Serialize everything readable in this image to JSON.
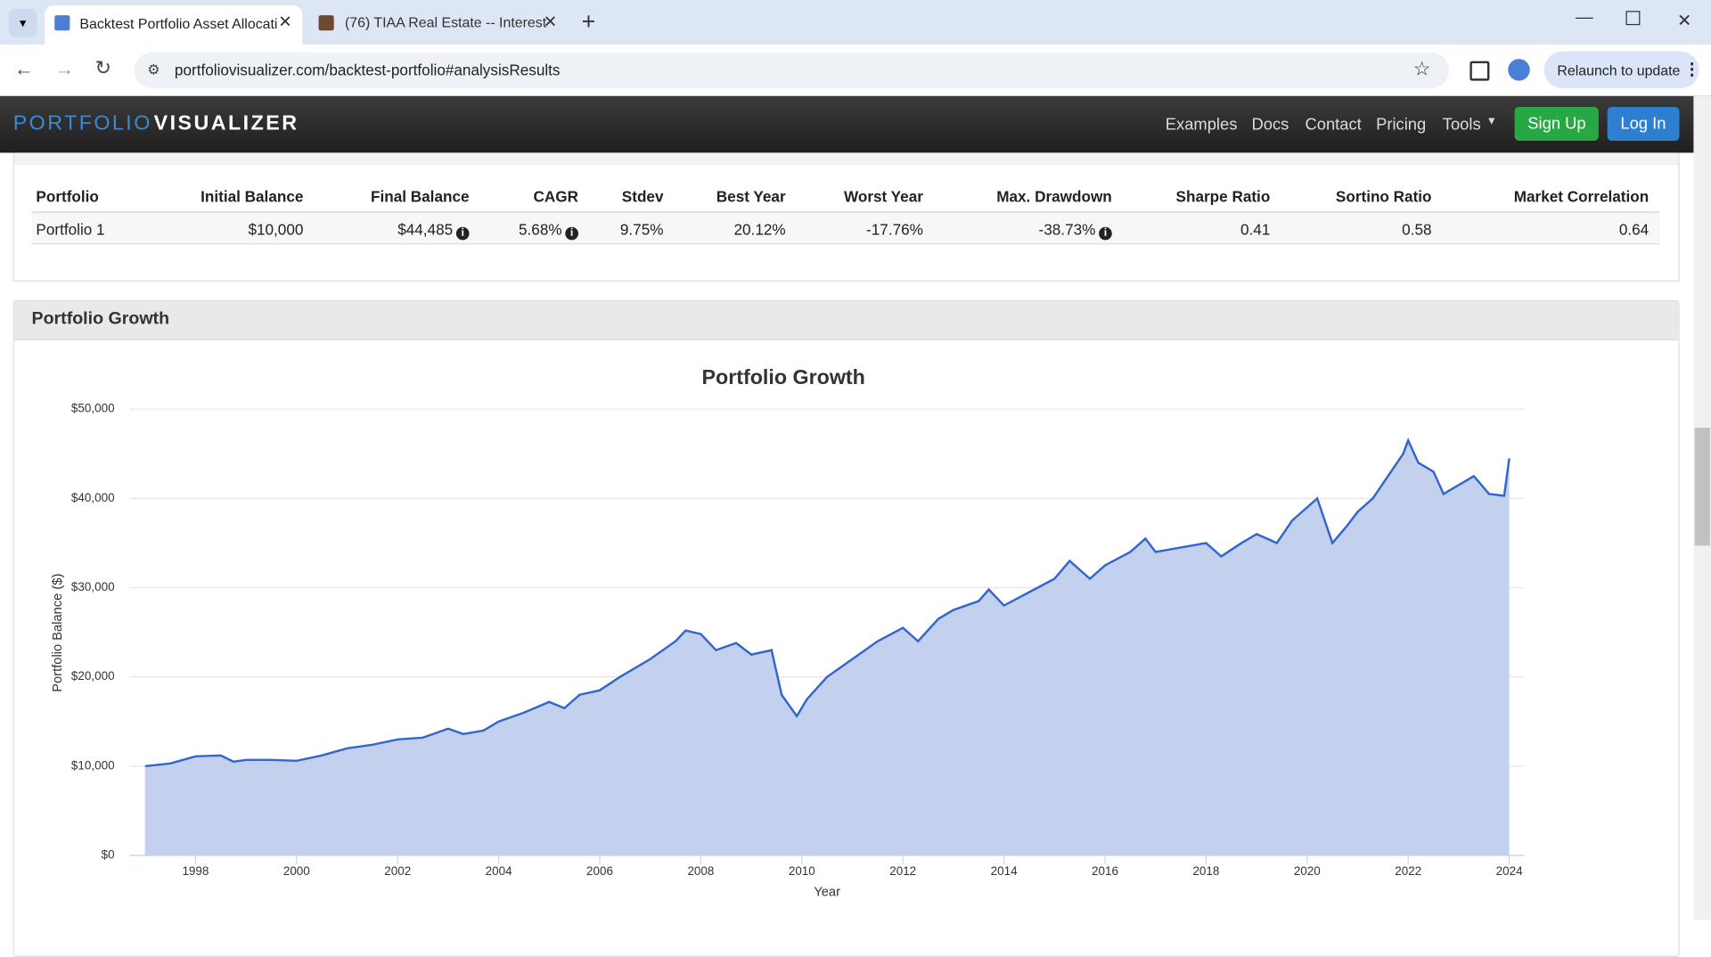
{
  "browser": {
    "tabs": [
      "Backtest Portfolio Asset Allocati",
      "(76) TIAA Real Estate -- Interest"
    ],
    "url": "portfoliovisualizer.com/backtest-portfolio#analysisResults",
    "relaunch": "Relaunch to update"
  },
  "nav": {
    "brand_1": "PORTFOLIO",
    "brand_2": "VISUALIZER",
    "links": [
      "Examples",
      "Docs",
      "Contact",
      "Pricing",
      "Tools"
    ],
    "sign_up": "Sign Up",
    "log_in": "Log In"
  },
  "table": {
    "headers": [
      "Portfolio",
      "Initial Balance",
      "Final Balance",
      "CAGR",
      "Stdev",
      "Best Year",
      "Worst Year",
      "Max. Drawdown",
      "Sharpe Ratio",
      "Sortino Ratio",
      "Market Correlation"
    ],
    "rows": [
      [
        "Portfolio 1",
        "$10,000",
        "$44,485",
        "5.68%",
        "9.75%",
        "20.12%",
        "-17.76%",
        "-38.73%",
        "0.41",
        "0.58",
        "0.64"
      ]
    ]
  },
  "panel_title": "Portfolio Growth",
  "chart_data": {
    "type": "area",
    "title": "Portfolio Growth",
    "x_label": "Year",
    "y_label": "Portfolio Balance ($)",
    "x": [
      1997,
      1997.5,
      1998,
      1998.5,
      1998.75,
      1999,
      1999.5,
      2000,
      2000.5,
      2001,
      2001.5,
      2002,
      2002.5,
      2003,
      2003.3,
      2003.7,
      2004,
      2004.5,
      2005,
      2005.3,
      2005.6,
      2006,
      2006.4,
      2006.7,
      2007,
      2007.5,
      2007.7,
      2008,
      2008.3,
      2008.7,
      2009,
      2009.4,
      2009.6,
      2009.9,
      2010.1,
      2010.5,
      2011,
      2011.5,
      2012,
      2012.3,
      2012.7,
      2013,
      2013.5,
      2013.7,
      2014,
      2014.5,
      2015,
      2015.3,
      2015.7,
      2016,
      2016.5,
      2016.8,
      2017,
      2017.5,
      2018,
      2018.3,
      2018.7,
      2019,
      2019.4,
      2019.7,
      2020,
      2020.2,
      2020.5,
      2020.8,
      2021,
      2021.3,
      2021.6,
      2021.9,
      2022,
      2022.2,
      2022.5,
      2022.7,
      2023,
      2023.3,
      2023.6,
      2023.9,
      2024
    ],
    "series": [
      {
        "name": "Portfolio 1",
        "color": "#3366cc",
        "fill": "#c3d1ee",
        "values": [
          10000,
          10300,
          11100,
          11200,
          10500,
          10700,
          10700,
          10600,
          11200,
          12000,
          12400,
          13000,
          13200,
          14200,
          13600,
          14000,
          15000,
          16000,
          17200,
          16500,
          18000,
          18500,
          20000,
          21000,
          22000,
          24000,
          25200,
          24800,
          23000,
          23800,
          22500,
          23000,
          18000,
          15600,
          17500,
          20000,
          22000,
          24000,
          25500,
          24000,
          26500,
          27500,
          28500,
          29800,
          28000,
          29500,
          31000,
          33000,
          31000,
          32500,
          34000,
          35500,
          34000,
          34500,
          35000,
          33500,
          35000,
          36000,
          35000,
          37500,
          39000,
          40000,
          35000,
          37000,
          38500,
          40000,
          42500,
          45000,
          46500,
          44000,
          43000,
          40500,
          41500,
          42500,
          40500,
          40300,
          44485
        ]
      }
    ],
    "xlim": [
      1996.7,
      2024.3
    ],
    "xticks": [
      1998,
      2000,
      2002,
      2004,
      2006,
      2008,
      2010,
      2012,
      2014,
      2016,
      2018,
      2020,
      2022,
      2024
    ],
    "ylim": [
      0,
      50000
    ],
    "yticks": [
      {
        "value": 0,
        "label": "$0"
      },
      {
        "value": 10000,
        "label": "$10,000"
      },
      {
        "value": 20000,
        "label": "$20,000"
      },
      {
        "value": 30000,
        "label": "$30,000"
      },
      {
        "value": 40000,
        "label": "$40,000"
      },
      {
        "value": 50000,
        "label": "$50,000"
      }
    ],
    "grid": true
  }
}
